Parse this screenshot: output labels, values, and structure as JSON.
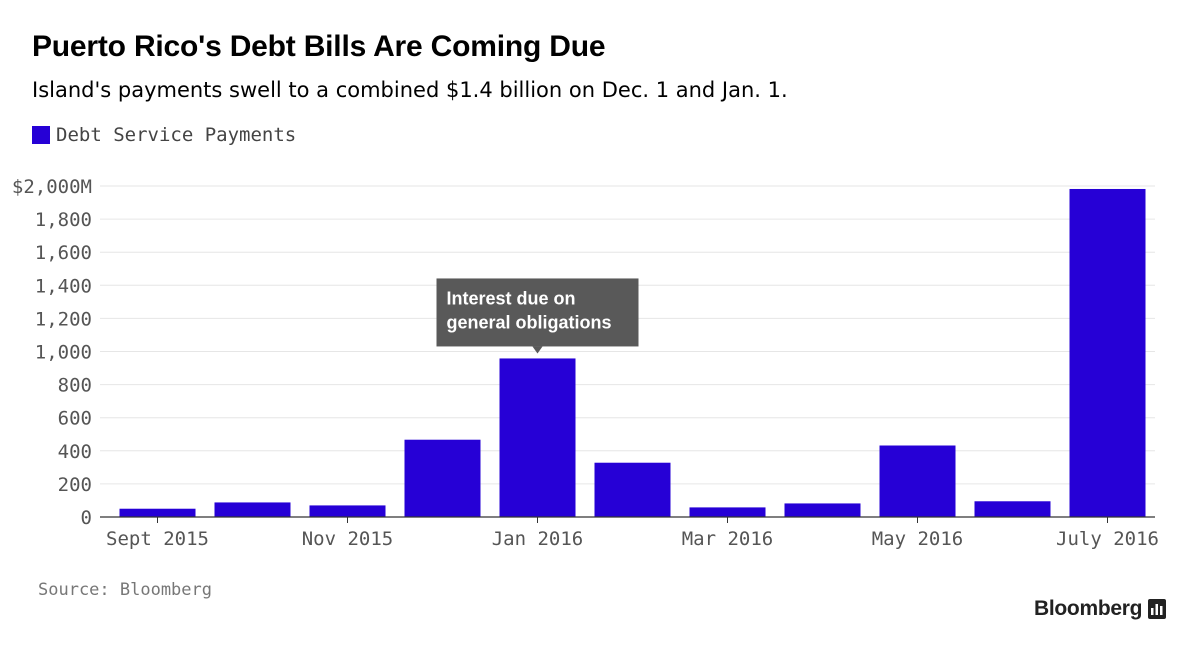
{
  "colors": {
    "bar": "#2600d6",
    "annotation_bg": "#595959",
    "annotation_text": "#ffffff",
    "grid": "#e6e6e6",
    "axis": "#333333",
    "tick_text": "#555555"
  },
  "footer": {
    "source": "Source: Bloomberg",
    "brand": "Bloomberg",
    "brand_icon": "bloomberg-terminal-icon"
  },
  "chart_data": {
    "type": "bar",
    "title": "Puerto Rico's Debt Bills Are Coming Due",
    "subtitle": "Island's payments swell to a combined $1.4 billion on Dec. 1 and Jan. 1.",
    "categories": [
      "Sept 2015",
      "Oct 2015",
      "Nov 2015",
      "Dec 2015",
      "Jan 2016",
      "Feb 2016",
      "Mar 2016",
      "Apr 2016",
      "May 2016",
      "June 2016",
      "July 2016"
    ],
    "series": [
      {
        "name": "Debt Service Payments",
        "values": [
          50,
          88,
          70,
          467,
          958,
          328,
          58,
          82,
          432,
          95,
          1982
        ]
      }
    ],
    "x_tick_labels": [
      {
        "index": 0,
        "label": "Sept 2015"
      },
      {
        "index": 2,
        "label": "Nov 2015"
      },
      {
        "index": 4,
        "label": "Jan 2016"
      },
      {
        "index": 6,
        "label": "Mar 2016"
      },
      {
        "index": 8,
        "label": "May 2016"
      },
      {
        "index": 10,
        "label": "July 2016"
      }
    ],
    "y_ticks": [
      0,
      200,
      400,
      600,
      800,
      1000,
      1200,
      1400,
      1600,
      1800,
      2000
    ],
    "y_tick_labels": [
      "0",
      "200",
      "400",
      "600",
      "800",
      "1,000",
      "1,200",
      "1,400",
      "1,600",
      "1,800",
      "$2,000M"
    ],
    "ylim": [
      0,
      2000
    ],
    "grid": true,
    "legend_position": "top-left",
    "annotations": [
      {
        "index": 4,
        "lines": [
          "Interest due on",
          "general obligations"
        ]
      }
    ],
    "xlabel": "",
    "ylabel": ""
  }
}
